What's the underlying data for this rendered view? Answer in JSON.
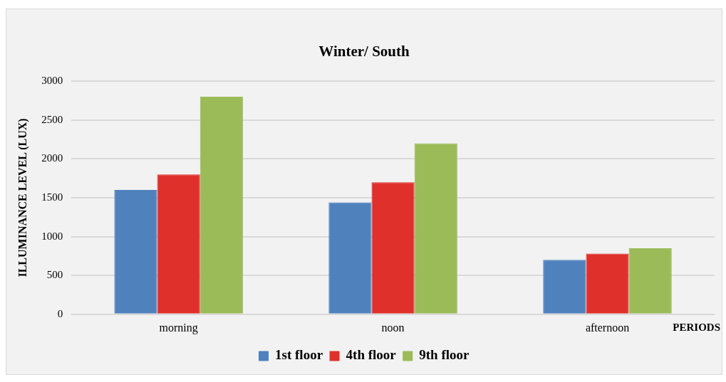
{
  "chart_data": {
    "type": "bar",
    "title": "Winter/ South",
    "xlabel": "PERIODS",
    "ylabel": "ILLUMINANCE LEVEL (LUX)",
    "categories": [
      "morning",
      "noon",
      "afternoon"
    ],
    "series": [
      {
        "name": "1st floor",
        "color": "#4f81bd",
        "values": [
          1600,
          1440,
          700
        ]
      },
      {
        "name": "4th floor",
        "color": "#e0302c",
        "values": [
          1800,
          1700,
          780
        ]
      },
      {
        "name": "9th floor",
        "color": "#9bbb59",
        "values": [
          2800,
          2200,
          850
        ]
      }
    ],
    "ylim": [
      0,
      3000
    ],
    "yticks": [
      0,
      500,
      1000,
      1500,
      2000,
      2500,
      3000
    ],
    "grid": "y",
    "legend": "bottom"
  }
}
